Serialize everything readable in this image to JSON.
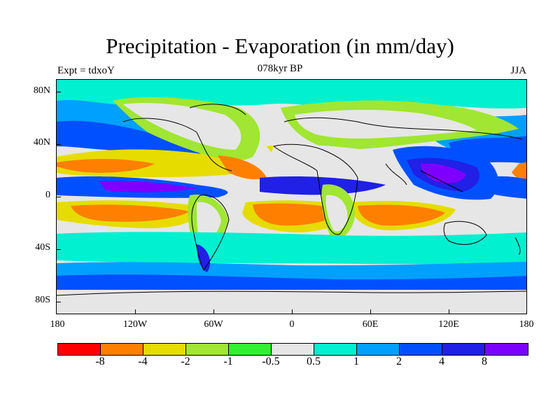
{
  "header": {
    "title": "Precipitation - Evaporation (in mm/day)",
    "subtitle": "078kyr BP",
    "left_label": "Expt = tdxoY",
    "right_label": "JJA"
  },
  "axes": {
    "lat_labels": [
      "80N",
      "40N",
      "0",
      "40S",
      "80S"
    ],
    "lon_labels": [
      "180",
      "120W",
      "60W",
      "0",
      "60E",
      "120E",
      "180"
    ]
  },
  "colorbar": {
    "colors": [
      "#ff0000",
      "#ff8000",
      "#e6dc00",
      "#a0e632",
      "#30f030",
      "#e6e6e6",
      "#00f0d0",
      "#00a0ff",
      "#0050ff",
      "#2020e6",
      "#7d00ff"
    ],
    "labels": [
      "-8",
      "-4",
      "-2",
      "-1",
      "-0.5",
      "0.5",
      "1",
      "2",
      "4",
      "8"
    ]
  },
  "map_colors": {
    "background": "#e6e6e6",
    "coast": "#000000"
  }
}
